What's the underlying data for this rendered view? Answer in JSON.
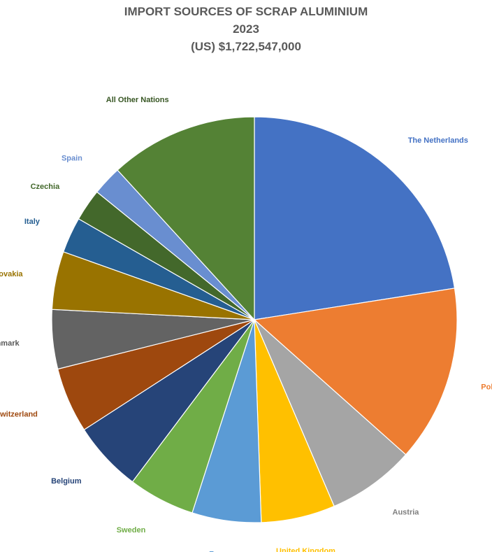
{
  "chart_data": {
    "type": "pie",
    "title": "IMPORT SOURCES OF SCRAP ALUMINIUM",
    "subtitle": "2023",
    "total_label": "(US) $1,722,547,000",
    "categories": [
      "The Netherlands",
      "Poland",
      "Austria",
      "United Kingdom",
      "France",
      "Sweden",
      "Belgium",
      "Switzerland",
      "Denmark",
      "Slovakia",
      "Italy",
      "Czechia",
      "Spain",
      "All Other Nations"
    ],
    "display_labels": [
      "The Netherlands",
      "Poland",
      "Austria",
      "United Kingdom",
      "France",
      "Sweden",
      "Belgium",
      "Switzerland",
      "Denmark",
      "Slovakia",
      "Italy",
      "Czechia",
      "Spain",
      "All Other Nations"
    ],
    "values": [
      22.9,
      14.3,
      7.1,
      6.0,
      5.6,
      5.4,
      5.7,
      5.3,
      4.8,
      4.7,
      2.9,
      2.6,
      2.4,
      12.0
    ],
    "colors": [
      "#4472c4",
      "#ed7d31",
      "#a5a5a5",
      "#ffc000",
      "#5b9bd5",
      "#70ad47",
      "#264478",
      "#9e480e",
      "#636363",
      "#997300",
      "#255e91",
      "#43682b",
      "#698ed0",
      "#548235"
    ],
    "label_colors": [
      "#4472c4",
      "#ed7d31",
      "#7f7f7f",
      "#ffc000",
      "#5b9bd5",
      "#70ad47",
      "#264478",
      "#9e480e",
      "#595959",
      "#997300",
      "#255e91",
      "#43682b",
      "#698ed0",
      "#375623"
    ],
    "legend": "none"
  }
}
